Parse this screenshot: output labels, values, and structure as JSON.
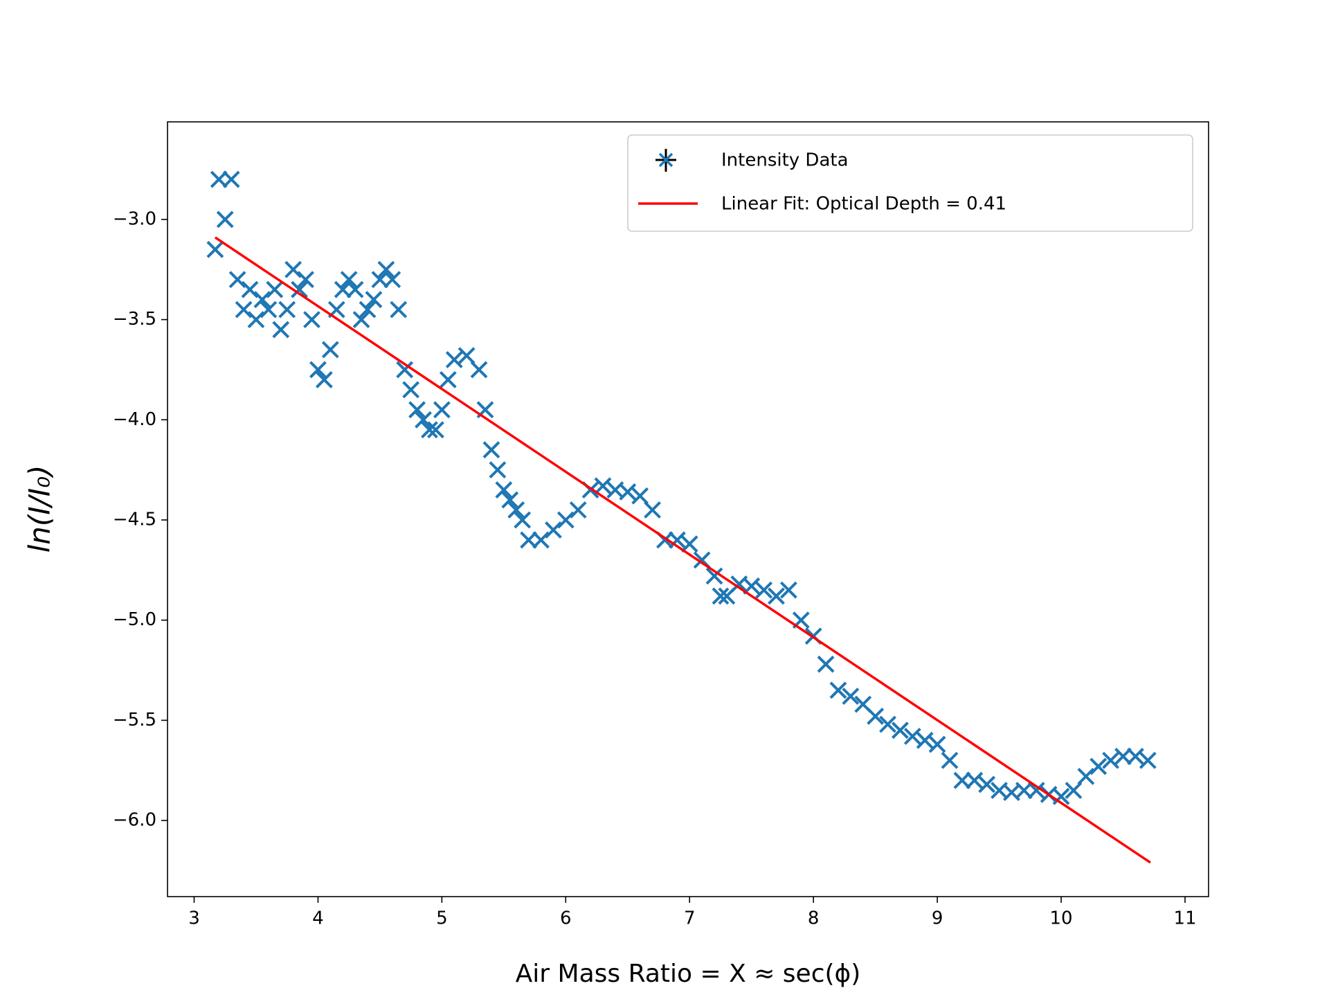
{
  "chart_data": {
    "type": "scatter",
    "xlabel": "Air Mass Ratio = X ≈ sec(ϕ)",
    "ylabel": "ln(I/I₀)",
    "xlim": [
      2.785,
      11.19
    ],
    "ylim": [
      -6.38,
      -2.513
    ],
    "xticks": [
      3,
      4,
      5,
      6,
      7,
      8,
      9,
      10,
      11
    ],
    "yticks": [
      {
        "value": -6.0,
        "label": "−6.0"
      },
      {
        "value": -5.5,
        "label": "−5.5"
      },
      {
        "value": -5.0,
        "label": "−5.0"
      },
      {
        "value": -4.5,
        "label": "−4.5"
      },
      {
        "value": -4.0,
        "label": "−4.0"
      },
      {
        "value": -3.5,
        "label": "−3.5"
      },
      {
        "value": -3.0,
        "label": "−3.0"
      }
    ],
    "legend": "upper right",
    "series": [
      {
        "name": "Intensity Data",
        "type": "scatter",
        "color": "#1f77b4",
        "x": [
          3.17,
          3.2,
          3.25,
          3.3,
          3.35,
          3.4,
          3.45,
          3.5,
          3.55,
          3.6,
          3.65,
          3.7,
          3.75,
          3.8,
          3.85,
          3.9,
          3.95,
          4.0,
          4.05,
          4.1,
          4.15,
          4.2,
          4.25,
          4.3,
          4.35,
          4.4,
          4.45,
          4.5,
          4.55,
          4.6,
          4.65,
          4.7,
          4.75,
          4.8,
          4.85,
          4.9,
          4.95,
          5.0,
          5.05,
          5.1,
          5.2,
          5.3,
          5.35,
          5.4,
          5.45,
          5.5,
          5.55,
          5.6,
          5.65,
          5.7,
          5.8,
          5.9,
          6.0,
          6.1,
          6.2,
          6.3,
          6.4,
          6.5,
          6.6,
          6.7,
          6.8,
          6.9,
          7.0,
          7.1,
          7.2,
          7.25,
          7.3,
          7.4,
          7.5,
          7.6,
          7.7,
          7.8,
          7.9,
          8.0,
          8.1,
          8.2,
          8.3,
          8.4,
          8.5,
          8.6,
          8.7,
          8.8,
          8.9,
          9.0,
          9.1,
          9.2,
          9.3,
          9.4,
          9.5,
          9.6,
          9.7,
          9.8,
          9.9,
          10.0,
          10.1,
          10.2,
          10.3,
          10.4,
          10.5,
          10.6,
          10.7
        ],
        "values": [
          -3.15,
          -2.8,
          -3.0,
          -2.8,
          -3.3,
          -3.45,
          -3.35,
          -3.5,
          -3.4,
          -3.45,
          -3.35,
          -3.55,
          -3.45,
          -3.25,
          -3.35,
          -3.3,
          -3.5,
          -3.75,
          -3.8,
          -3.65,
          -3.45,
          -3.35,
          -3.3,
          -3.35,
          -3.5,
          -3.45,
          -3.4,
          -3.3,
          -3.25,
          -3.3,
          -3.45,
          -3.75,
          -3.85,
          -3.95,
          -4.0,
          -4.05,
          -4.05,
          -3.95,
          -3.8,
          -3.7,
          -3.68,
          -3.75,
          -3.95,
          -4.15,
          -4.25,
          -4.35,
          -4.4,
          -4.45,
          -4.5,
          -4.6,
          -4.6,
          -4.55,
          -4.5,
          -4.45,
          -4.35,
          -4.33,
          -4.35,
          -4.36,
          -4.38,
          -4.45,
          -4.6,
          -4.6,
          -4.62,
          -4.7,
          -4.78,
          -4.88,
          -4.88,
          -4.82,
          -4.83,
          -4.85,
          -4.88,
          -4.85,
          -5.0,
          -5.08,
          -5.22,
          -5.35,
          -5.38,
          -5.42,
          -5.48,
          -5.52,
          -5.55,
          -5.58,
          -5.6,
          -5.62,
          -5.7,
          -5.8,
          -5.8,
          -5.82,
          -5.85,
          -5.86,
          -5.85,
          -5.85,
          -5.87,
          -5.88,
          -5.85,
          -5.78,
          -5.73,
          -5.7,
          -5.68,
          -5.68,
          -5.7
        ]
      },
      {
        "name": "Linear Fit: Optical Depth = 0.41",
        "type": "line",
        "color": "#ff0000",
        "x": [
          3.17,
          10.72
        ],
        "values": [
          -3.09,
          -6.21
        ]
      }
    ]
  }
}
